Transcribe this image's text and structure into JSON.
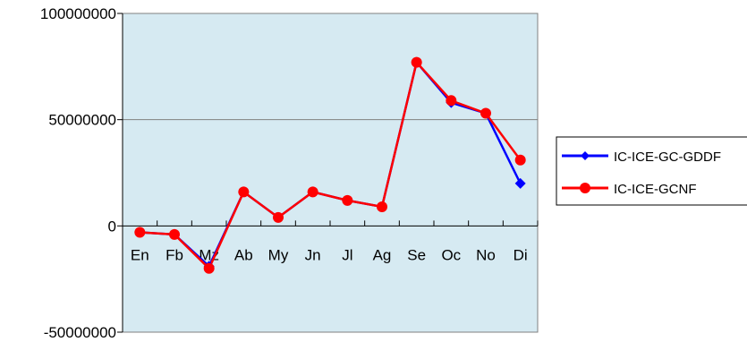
{
  "chart_data": {
    "type": "line",
    "categories": [
      "En",
      "Fb",
      "Mz",
      "Ab",
      "My",
      "Jn",
      "Jl",
      "Ag",
      "Se",
      "Oc",
      "No",
      "Di"
    ],
    "series": [
      {
        "name": "IC-ICE-GC-GDDF",
        "color": "#0000ff",
        "marker": "diamond",
        "values": [
          -3000000,
          -4000000,
          -19000000,
          16000000,
          4000000,
          16000000,
          12000000,
          9000000,
          77000000,
          58000000,
          53000000,
          20000000
        ]
      },
      {
        "name": "IC-ICE-GCNF",
        "color": "#ff0000",
        "marker": "circle",
        "values": [
          -3000000,
          -4000000,
          -20000000,
          16000000,
          4000000,
          16000000,
          12000000,
          9000000,
          77000000,
          59000000,
          53000000,
          31000000
        ]
      }
    ],
    "ylim": [
      -50000000,
      100000000
    ],
    "yticks": [
      -50000000,
      0,
      50000000,
      100000000
    ],
    "ytick_labels": [
      "-50000000",
      "0",
      "50000000",
      "100000000"
    ],
    "plot_background": "#d6eaf2",
    "grid": "horizontal",
    "legend_position": "right"
  }
}
